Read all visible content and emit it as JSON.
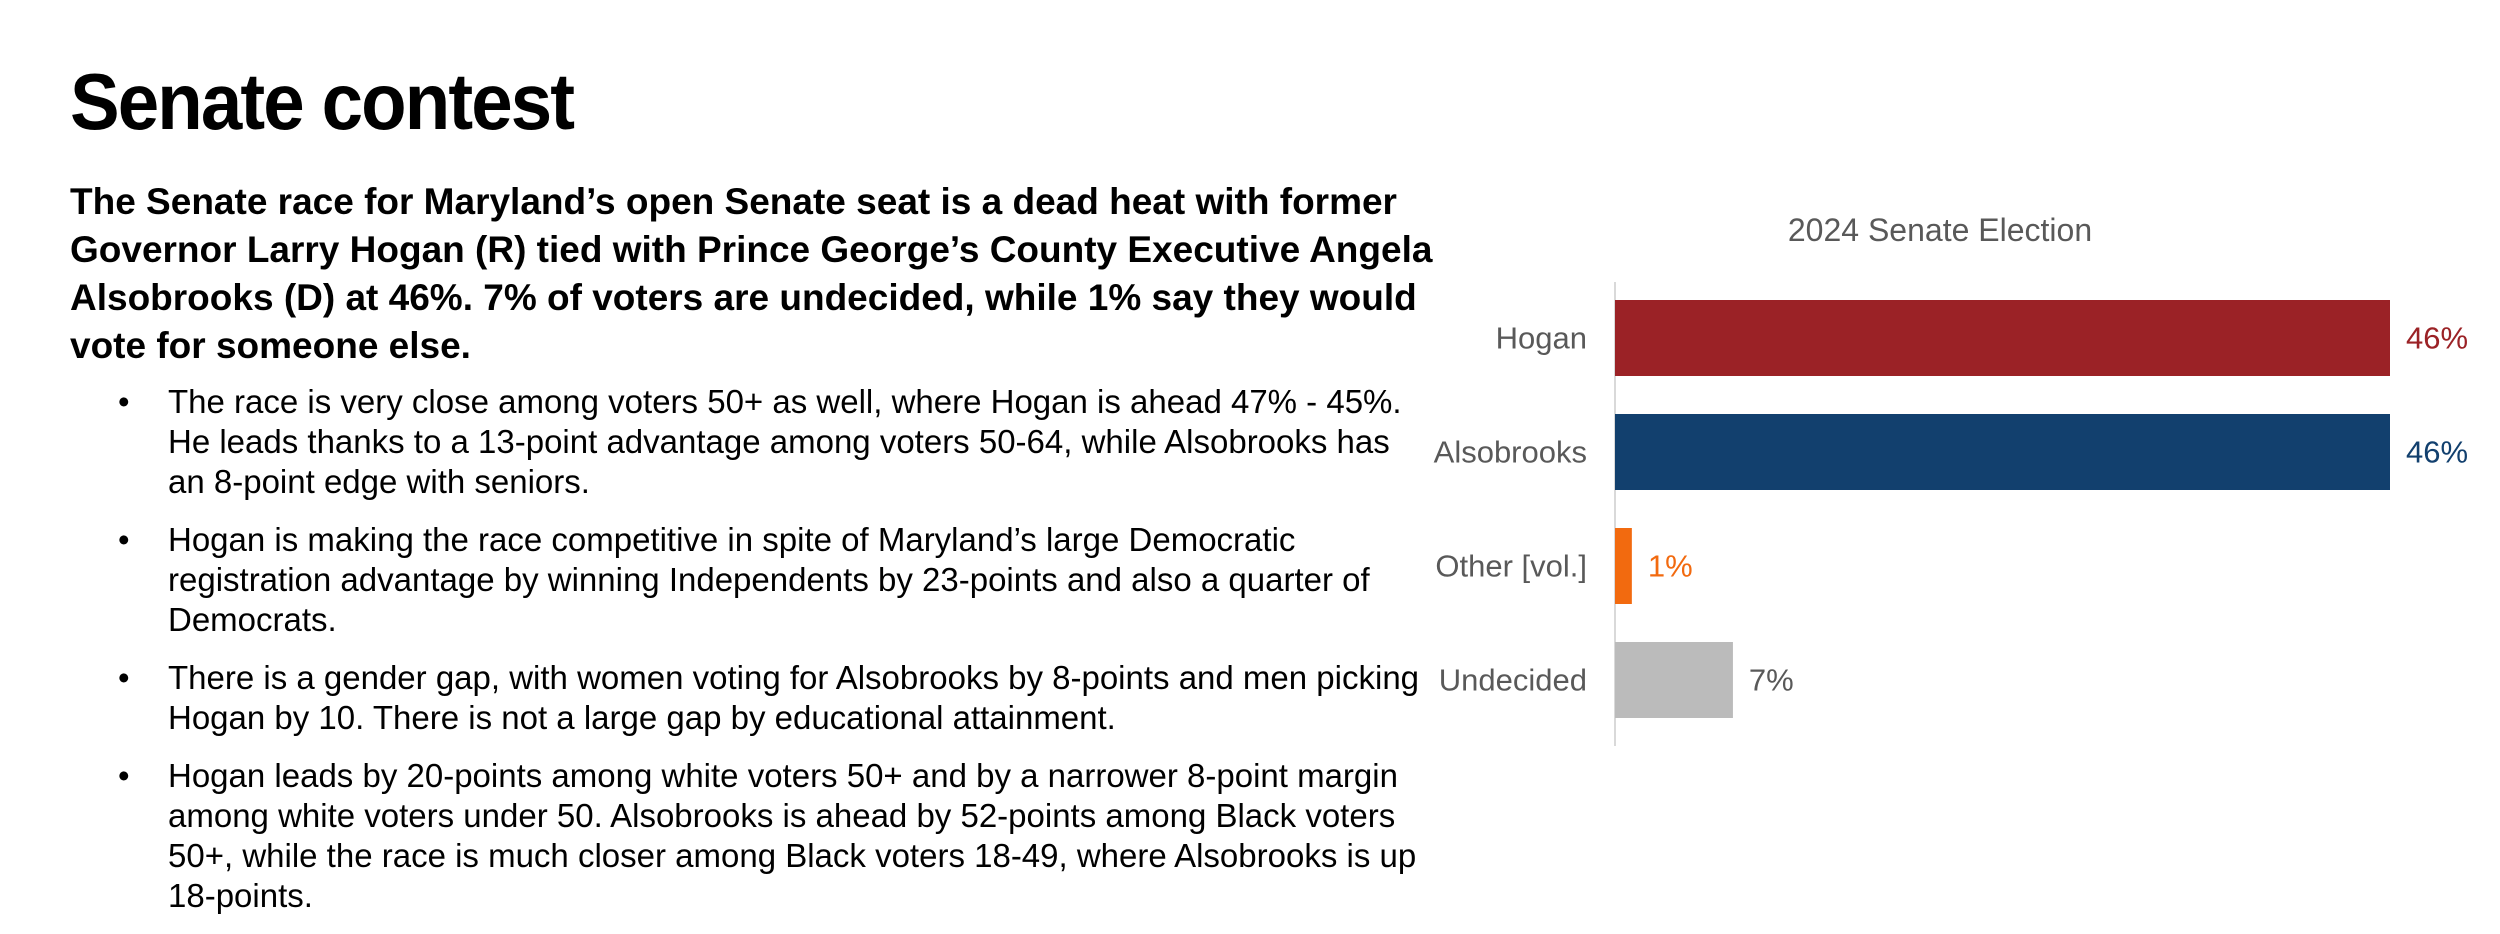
{
  "slide": {
    "title": "Senate contest",
    "summary": "The Senate race for Maryland’s open Senate seat is a dead heat with former Governor Larry Hogan (R) tied with Prince George’s County Executive Angela Alsobrooks (D) at 46%. 7% of voters are undecided, while 1% say they would vote for someone else.",
    "bullet_symbol": "•",
    "bullets": [
      "The race is very close among voters 50+ as well, where Hogan is ahead 47% - 45%. He leads thanks to a 13-point advantage among voters 50-64, while Alsobrooks has an 8-point edge with seniors.",
      "Hogan is making the race competitive in spite of Maryland’s large Democratic registration advantage by winning Independents by 23-points and also a quarter of Democrats.",
      "There is a gender gap, with women voting for Alsobrooks by 8-points and men picking Hogan by 10. There is not a large gap by educational attainment.",
      "Hogan leads by 20-points among white voters 50+ and by a narrower 8-point margin among white voters under 50. Alsobrooks is ahead by 52-points among Black voters 50+, while the race is much closer among Black voters 18-49, where Alsobrooks is up 18-points."
    ]
  },
  "chart_data": {
    "type": "bar",
    "orientation": "horizontal",
    "title": "2024 Senate Election",
    "categories": [
      "Hogan",
      "Alsobrooks",
      "Other [vol.]",
      "Undecided"
    ],
    "values": [
      46,
      46,
      1,
      7
    ],
    "value_labels": [
      "46%",
      "46%",
      "1%",
      "7%"
    ],
    "colors": [
      "#9B2226",
      "#12406E",
      "#F26A0F",
      "#BBBBBB"
    ],
    "label_colors": [
      "#9B2226",
      "#12406E",
      "#F26A0F",
      "#595959"
    ],
    "xlim": [
      0,
      46
    ],
    "xlabel": "",
    "ylabel": "",
    "grid": false,
    "legend": "none"
  }
}
